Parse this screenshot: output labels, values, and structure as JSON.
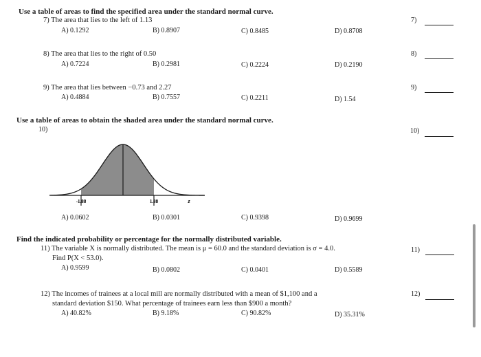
{
  "section1": {
    "instruction": "Use a table of areas to find the specified area under the standard normal curve.",
    "questions": [
      {
        "number": "7)",
        "text": "7) The area that lies to the left of 1.13",
        "choices": [
          "A) 0.1292",
          "B) 0.8907",
          "C) 0.8485",
          "D) 0.8708"
        ],
        "answer_label": "7)"
      },
      {
        "number": "8)",
        "text": "8) The area that lies to the right of 0.50",
        "choices": [
          "A) 0.7224",
          "B) 0.2981",
          "C) 0.2224",
          "D) 0.2190"
        ],
        "answer_label": "8)"
      },
      {
        "number": "9)",
        "text": "9) The area that lies between −0.73 and 2.27",
        "choices": [
          "A) 0.4884",
          "B) 0.7557",
          "C) 0.2211",
          "D) 1.54"
        ],
        "answer_label": "9)"
      }
    ]
  },
  "section2": {
    "instruction": "Use a table of areas to obtain the shaded area under the standard normal curve.",
    "question": {
      "number": "10)",
      "answer_label": "10)",
      "graph_labels": {
        "left": "-1.88",
        "right": "1.88",
        "axis": "z"
      },
      "choices": [
        "A) 0.0602",
        "B) 0.0301",
        "C) 0.9398",
        "D) 0.9699"
      ]
    }
  },
  "section3": {
    "instruction": "Find the indicated probability or percentage for the normally distributed variable.",
    "questions": [
      {
        "number": "11)",
        "line1": "11) The variable X is normally distributed. The mean is μ = 60.0 and the standard deviation is σ = 4.0.",
        "line2": "Find P(X < 53.0).",
        "choices": [
          "A) 0.9599",
          "B) 0.0802",
          "C) 0.0401",
          "D) 0.5589"
        ],
        "answer_label": "11)"
      },
      {
        "number": "12)",
        "line1": "12) The incomes of trainees at a local mill are normally distributed with a mean of $1,100 and a",
        "line2": "standard deviation $150. What percentage of trainees earn less than $900 a month?",
        "choices": [
          "A) 40.82%",
          "B) 9.18%",
          "C) 90.82%",
          "D) 35.31%"
        ],
        "answer_label": "12)"
      }
    ]
  },
  "colors": {
    "text": "#1a1a1a",
    "shade": "#8c8c8c",
    "background": "#ffffff"
  }
}
